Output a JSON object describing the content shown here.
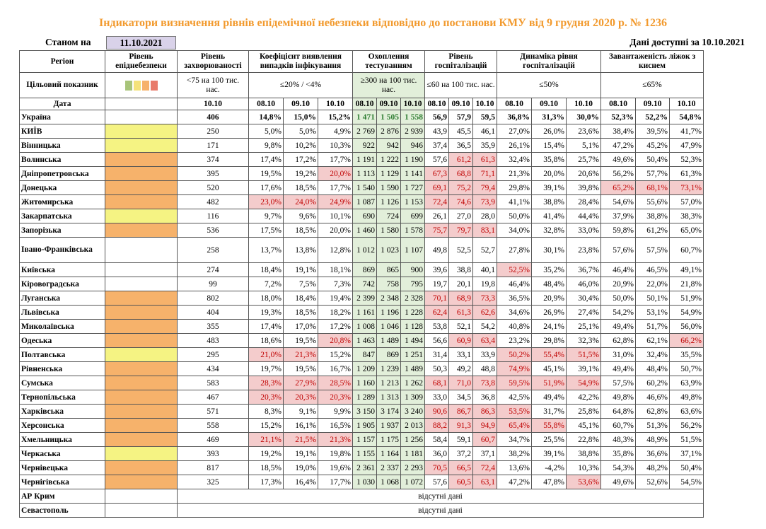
{
  "title": "Індикатори визначення рівнів епідемічної небезпеки відповідно до постанови КМУ від 9 грудня 2020 р. № 1236",
  "stanom_label": "Станом на",
  "stanom_date": "11.10.2021",
  "available": "Дані доступні за  10.10.2021",
  "headers": {
    "region": "Регіон",
    "level": "Рівень епіднебезпеки",
    "incidence": "Рівень захворюваності",
    "detection": "Коефіцієнт виявлення випадків інфікування",
    "testing": "Охоплення тестуванням",
    "hosp": "Рівень госпіталізацій",
    "dyn": "Динаміка рівня госпіталізацій",
    "beds": "Завантаженість ліжок з киснем"
  },
  "target": {
    "label": "Цільовий показник",
    "incidence": "<75 на 100 тис. нас.",
    "detection": "≤20% / <4%",
    "testing": "≥300 на 100 тис. нас.",
    "hosp": "≤60 на 100 тис. нас.",
    "dyn": "≤50%",
    "beds": "≤65%"
  },
  "date_label": "Дата",
  "dates": [
    "10.10",
    "08.10",
    "09.10",
    "10.10",
    "08.10",
    "09.10",
    "10.10",
    "08.10",
    "09.10",
    "10.10",
    "08.10",
    "09.10",
    "10.10",
    "08.10",
    "09.10",
    "10.10"
  ],
  "missing": "відсутні дані",
  "colors": {
    "yellow": "#f5f383",
    "orange": "#f6b26b",
    "red_bg": "#f4cccc",
    "green_bg": "#e2efda"
  },
  "rows": [
    {
      "name": "Україна",
      "level": "",
      "vals": [
        "406",
        "14,8%",
        "15,0%",
        "15,2%",
        "1 471",
        "1 505",
        "1 558",
        "56,9",
        "57,9",
        "59,5",
        "36,8%",
        "31,3%",
        "30,0%",
        "52,3%",
        "52,2%",
        "54,8%"
      ],
      "red": []
    },
    {
      "name": "КИЇВ",
      "level": "yellow",
      "vals": [
        "250",
        "5,0%",
        "5,0%",
        "4,9%",
        "2 769",
        "2 876",
        "2 939",
        "43,9",
        "45,5",
        "46,1",
        "27,0%",
        "26,0%",
        "23,6%",
        "38,4%",
        "39,5%",
        "41,7%"
      ],
      "red": []
    },
    {
      "name": "Вінницька",
      "level": "yellow",
      "vals": [
        "171",
        "9,8%",
        "10,2%",
        "10,3%",
        "922",
        "942",
        "946",
        "37,4",
        "36,5",
        "35,9",
        "26,1%",
        "15,4%",
        "5,1%",
        "47,2%",
        "45,2%",
        "47,9%"
      ],
      "red": []
    },
    {
      "name": "Волинська",
      "level": "orange",
      "vals": [
        "374",
        "17,4%",
        "17,2%",
        "17,7%",
        "1 191",
        "1 222",
        "1 190",
        "57,6",
        "61,2",
        "61,3",
        "32,4%",
        "35,8%",
        "25,7%",
        "49,6%",
        "50,4%",
        "52,3%"
      ],
      "red": [
        8,
        9
      ]
    },
    {
      "name": "Дніпропетровська",
      "level": "orange",
      "vals": [
        "395",
        "19,5%",
        "19,2%",
        "20,0%",
        "1 113",
        "1 129",
        "1 141",
        "67,3",
        "68,8",
        "71,1",
        "21,3%",
        "20,0%",
        "20,6%",
        "56,2%",
        "57,7%",
        "61,3%"
      ],
      "red": [
        3,
        7,
        8,
        9
      ]
    },
    {
      "name": "Донецька",
      "level": "orange",
      "vals": [
        "520",
        "17,6%",
        "18,5%",
        "17,7%",
        "1 540",
        "1 590",
        "1 727",
        "69,1",
        "75,2",
        "79,4",
        "29,8%",
        "39,1%",
        "39,8%",
        "65,2%",
        "68,1%",
        "73,1%"
      ],
      "red": [
        7,
        8,
        9,
        13,
        14,
        15
      ]
    },
    {
      "name": "Житомирська",
      "level": "orange",
      "vals": [
        "482",
        "23,0%",
        "24,0%",
        "24,9%",
        "1 087",
        "1 126",
        "1 153",
        "72,4",
        "74,6",
        "73,9",
        "41,1%",
        "38,8%",
        "28,4%",
        "54,6%",
        "55,6%",
        "57,0%"
      ],
      "red": [
        1,
        2,
        3,
        7,
        8,
        9
      ]
    },
    {
      "name": "Закарпатська",
      "level": "yellow",
      "vals": [
        "116",
        "9,7%",
        "9,6%",
        "10,1%",
        "690",
        "724",
        "699",
        "26,1",
        "27,0",
        "28,0",
        "50,0%",
        "41,4%",
        "44,4%",
        "37,9%",
        "38,8%",
        "38,3%"
      ],
      "red": []
    },
    {
      "name": "Запорізька",
      "level": "orange",
      "vals": [
        "536",
        "17,5%",
        "18,5%",
        "20,0%",
        "1 460",
        "1 580",
        "1 578",
        "75,7",
        "79,7",
        "83,1",
        "34,0%",
        "32,8%",
        "33,0%",
        "59,8%",
        "61,2%",
        "65,0%"
      ],
      "red": [
        7,
        8,
        9
      ]
    },
    {
      "name": "Івано-Франківська",
      "level": "",
      "tall": true,
      "vals": [
        "258",
        "13,7%",
        "13,8%",
        "12,8%",
        "1 012",
        "1 023",
        "1 107",
        "49,8",
        "52,5",
        "52,7",
        "27,8%",
        "30,1%",
        "23,8%",
        "57,6%",
        "57,5%",
        "60,7%"
      ],
      "red": []
    },
    {
      "name": "Київська",
      "level": "",
      "vals": [
        "274",
        "18,4%",
        "19,1%",
        "18,1%",
        "869",
        "865",
        "900",
        "39,6",
        "38,8",
        "40,1",
        "52,5%",
        "35,2%",
        "36,7%",
        "46,4%",
        "46,5%",
        "49,1%"
      ],
      "red": [
        10
      ]
    },
    {
      "name": "Кіровоградська",
      "level": "",
      "vals": [
        "99",
        "7,2%",
        "7,5%",
        "7,3%",
        "742",
        "758",
        "795",
        "19,7",
        "20,1",
        "19,8",
        "46,4%",
        "48,4%",
        "46,0%",
        "20,9%",
        "22,0%",
        "21,8%"
      ],
      "red": []
    },
    {
      "name": "Луганська",
      "level": "orange",
      "vals": [
        "802",
        "18,0%",
        "18,4%",
        "19,4%",
        "2 399",
        "2 348",
        "2 328",
        "70,1",
        "68,9",
        "73,3",
        "36,5%",
        "20,9%",
        "30,4%",
        "50,0%",
        "50,1%",
        "51,9%"
      ],
      "red": [
        7,
        8,
        9
      ]
    },
    {
      "name": "Львівська",
      "level": "orange",
      "vals": [
        "404",
        "19,3%",
        "18,5%",
        "18,2%",
        "1 161",
        "1 196",
        "1 228",
        "62,4",
        "61,3",
        "62,6",
        "34,6%",
        "26,9%",
        "27,4%",
        "54,2%",
        "53,1%",
        "54,9%"
      ],
      "red": [
        7,
        8,
        9
      ]
    },
    {
      "name": "Миколаївська",
      "level": "orange",
      "vals": [
        "355",
        "17,4%",
        "17,0%",
        "17,2%",
        "1 008",
        "1 046",
        "1 128",
        "53,8",
        "52,1",
        "54,2",
        "40,8%",
        "24,1%",
        "25,1%",
        "49,4%",
        "51,7%",
        "56,0%"
      ],
      "red": []
    },
    {
      "name": "Одеська",
      "level": "orange",
      "vals": [
        "483",
        "18,6%",
        "19,5%",
        "20,8%",
        "1 463",
        "1 489",
        "1 494",
        "56,6",
        "60,9",
        "63,4",
        "23,2%",
        "29,8%",
        "32,3%",
        "62,8%",
        "62,1%",
        "66,2%"
      ],
      "red": [
        3,
        8,
        9,
        15
      ]
    },
    {
      "name": "Полтавська",
      "level": "yellow",
      "vals": [
        "295",
        "21,0%",
        "21,3%",
        "15,2%",
        "847",
        "869",
        "1 251",
        "31,4",
        "33,1",
        "33,9",
        "50,2%",
        "55,4%",
        "51,5%",
        "31,0%",
        "32,4%",
        "35,5%"
      ],
      "red": [
        1,
        2,
        10,
        11,
        12
      ]
    },
    {
      "name": "Рівненська",
      "level": "orange",
      "vals": [
        "434",
        "19,7%",
        "19,5%",
        "16,7%",
        "1 209",
        "1 239",
        "1 489",
        "50,3",
        "49,2",
        "48,8",
        "74,9%",
        "45,1%",
        "39,1%",
        "49,4%",
        "48,4%",
        "50,7%"
      ],
      "red": [
        10
      ]
    },
    {
      "name": "Сумська",
      "level": "orange",
      "vals": [
        "583",
        "28,3%",
        "27,9%",
        "28,5%",
        "1 160",
        "1 213",
        "1 262",
        "68,1",
        "71,0",
        "73,8",
        "59,5%",
        "51,9%",
        "54,9%",
        "57,5%",
        "60,2%",
        "63,9%"
      ],
      "red": [
        1,
        2,
        3,
        7,
        8,
        9,
        10,
        11,
        12
      ]
    },
    {
      "name": "Тернопільська",
      "level": "orange",
      "vals": [
        "467",
        "20,3%",
        "20,3%",
        "20,3%",
        "1 289",
        "1 313",
        "1 309",
        "33,0",
        "34,5",
        "36,8",
        "42,5%",
        "49,4%",
        "42,2%",
        "49,8%",
        "46,6%",
        "49,8%"
      ],
      "red": [
        1,
        2,
        3
      ]
    },
    {
      "name": "Харківська",
      "level": "orange",
      "vals": [
        "571",
        "8,3%",
        "9,1%",
        "9,9%",
        "3 150",
        "3 174",
        "3 240",
        "90,6",
        "86,7",
        "86,3",
        "53,5%",
        "31,7%",
        "25,8%",
        "64,8%",
        "62,8%",
        "63,6%"
      ],
      "red": [
        7,
        8,
        9,
        10
      ]
    },
    {
      "name": "Херсонська",
      "level": "orange",
      "vals": [
        "558",
        "15,2%",
        "16,1%",
        "16,5%",
        "1 905",
        "1 937",
        "2 013",
        "88,2",
        "91,3",
        "94,9",
        "65,4%",
        "55,8%",
        "45,1%",
        "60,7%",
        "51,3%",
        "56,2%"
      ],
      "red": [
        7,
        8,
        9,
        10,
        11
      ]
    },
    {
      "name": "Хмельницька",
      "level": "orange",
      "vals": [
        "469",
        "21,1%",
        "21,5%",
        "21,3%",
        "1 157",
        "1 175",
        "1 256",
        "58,4",
        "59,1",
        "60,7",
        "34,7%",
        "25,5%",
        "22,8%",
        "48,3%",
        "48,9%",
        "51,5%"
      ],
      "red": [
        1,
        2,
        3,
        9
      ]
    },
    {
      "name": "Черкаська",
      "level": "yellow",
      "vals": [
        "393",
        "19,2%",
        "19,1%",
        "19,8%",
        "1 155",
        "1 164",
        "1 181",
        "36,0",
        "37,2",
        "37,1",
        "38,2%",
        "39,1%",
        "38,8%",
        "35,8%",
        "36,6%",
        "37,1%"
      ],
      "red": []
    },
    {
      "name": "Чернівецька",
      "level": "orange",
      "vals": [
        "817",
        "18,5%",
        "19,0%",
        "19,6%",
        "2 361",
        "2 337",
        "2 293",
        "70,5",
        "66,5",
        "72,4",
        "13,6%",
        "-4,2%",
        "10,3%",
        "54,3%",
        "48,2%",
        "50,4%"
      ],
      "red": [
        7,
        8,
        9
      ]
    },
    {
      "name": "Чернігівська",
      "level": "orange",
      "vals": [
        "325",
        "17,3%",
        "16,4%",
        "17,7%",
        "1 030",
        "1 068",
        "1 072",
        "57,6",
        "60,5",
        "63,1",
        "47,2%",
        "47,8%",
        "53,6%",
        "49,6%",
        "52,6%",
        "54,5%"
      ],
      "red": [
        8,
        9,
        12
      ]
    },
    {
      "name": "АР Крим",
      "missing": true
    },
    {
      "name": "Севастополь",
      "missing": true
    }
  ]
}
